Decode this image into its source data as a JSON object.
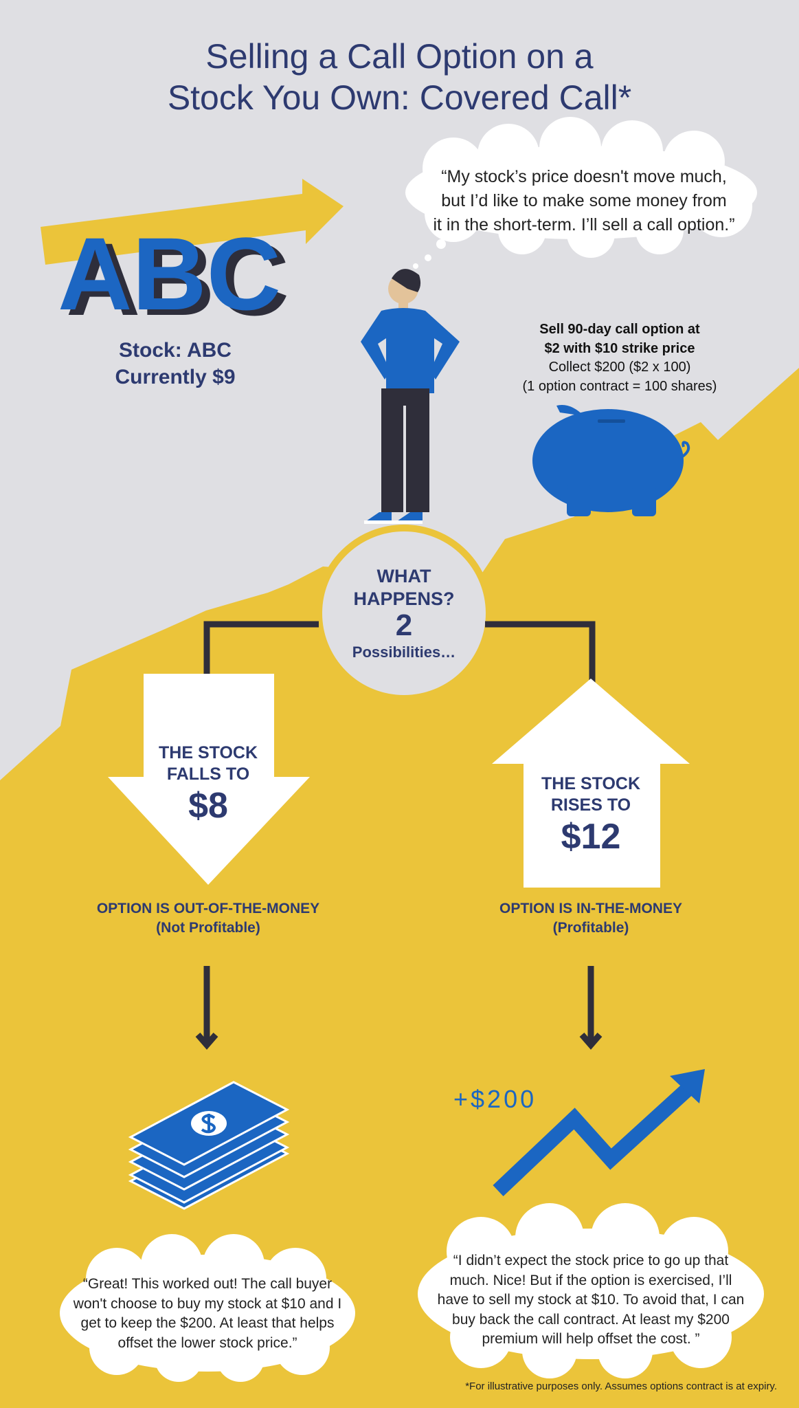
{
  "title": [
    "Selling a Call Option on a",
    "Stock You Own: Covered Call*"
  ],
  "thought_bubble": [
    "“My stock’s price doesn't move much,",
    "but I’d like to make some money from",
    "it in the short-term. I’ll sell a call option.”"
  ],
  "logo_text": "ABC",
  "stock": {
    "name": "Stock: ABC",
    "price": "Currently $9"
  },
  "trade": {
    "line1": "Sell 90-day call option at",
    "line2": "$2 with $10 strike price",
    "line3": "Collect $200 ($2 x 100)",
    "line4": "(1 option contract = 100 shares)"
  },
  "center": {
    "line1": "WHAT",
    "line2": "HAPPENS?",
    "count": "2",
    "line3": "Possibilities…"
  },
  "left": {
    "line1": "THE STOCK",
    "line2": "FALLS TO",
    "price": "$8",
    "option1": "OPTION IS OUT-OF-THE-MONEY",
    "option2": "(Not Profitable)",
    "quote": [
      "“Great! This worked out! The call buyer",
      "won't choose to buy my stock at $10 and I",
      "get to keep the $200. At least that helps",
      "offset the lower stock price.”"
    ]
  },
  "right": {
    "line1": "THE STOCK",
    "line2": "RISES TO",
    "price": "$12",
    "option1": "OPTION IS IN-THE-MONEY",
    "option2": "(Profitable)",
    "gain": "+$200",
    "quote": [
      "“I didn’t expect the stock price to go up that",
      "much. Nice! But if the option is exercised, I’ll",
      "have to sell my stock at $10. To avoid that, I can",
      "buy back the call contract. At least my $200",
      "premium will help offset the cost. ”"
    ]
  },
  "footnote": "*For illustrative purposes only. Assumes options contract is at expiry.",
  "colors": {
    "navy": "#2d3a70",
    "blue": "#1b66c2",
    "yellow": "#ebc43a",
    "grey": "#dfdfe3"
  }
}
